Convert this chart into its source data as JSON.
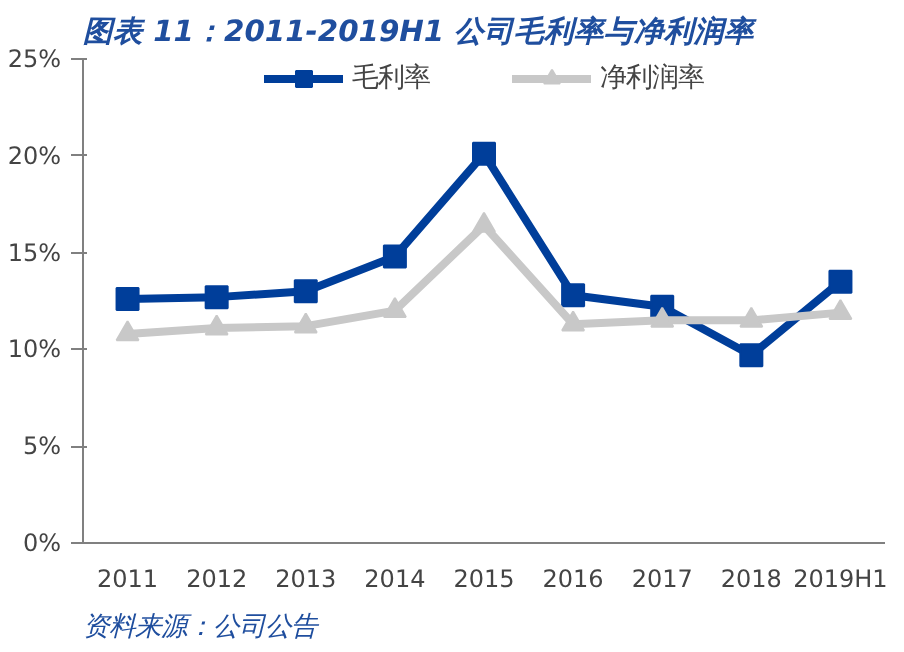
{
  "chart_data": {
    "type": "line",
    "title": "图表 11：2011-2019H1 公司毛利率与净利润率",
    "categories": [
      "2011",
      "2012",
      "2013",
      "2014",
      "2015",
      "2016",
      "2017",
      "2018",
      "2019H1"
    ],
    "series": [
      {
        "name": "毛利率",
        "color": "#003e9a",
        "marker": "square",
        "values": [
          12.6,
          12.7,
          13.0,
          14.8,
          20.1,
          12.8,
          12.2,
          9.7,
          13.5
        ]
      },
      {
        "name": "净利润率",
        "color": "#c8c8c8",
        "marker": "triangle",
        "values": [
          10.8,
          11.1,
          11.2,
          12.0,
          16.4,
          11.3,
          11.5,
          11.5,
          11.9
        ]
      }
    ],
    "ylim": [
      0,
      25
    ],
    "yticks": [
      {
        "value": 0,
        "label": "0%"
      },
      {
        "value": 5,
        "label": "5%"
      },
      {
        "value": 10,
        "label": "10%"
      },
      {
        "value": 15,
        "label": "15%"
      },
      {
        "value": 20,
        "label": "20%"
      },
      {
        "value": 25,
        "label": "25%"
      }
    ],
    "grid": false,
    "legend": "top",
    "line_style": "solid",
    "annotations": [
      "资料来源：公司公告"
    ]
  }
}
